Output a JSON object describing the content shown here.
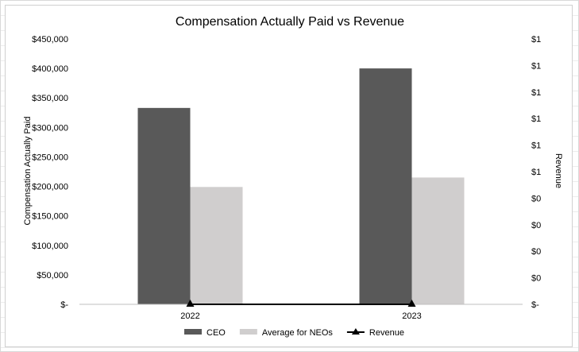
{
  "chart_data": {
    "type": "bar",
    "title": "Compensation Actually Paid vs Revenue",
    "ylabel": "Compensation Actually Paid",
    "y2label": "Revenue",
    "categories": [
      "2022",
      "2023"
    ],
    "ylim": [
      0,
      450000
    ],
    "yticks": [
      "$450,000",
      "$400,000",
      "$350,000",
      "$300,000",
      "$250,000",
      "$200,000",
      "$150,000",
      "$100,000",
      "$50,000",
      "$-"
    ],
    "y2ticks": [
      "$1",
      "$1",
      "$1",
      "$1",
      "$1",
      "$1",
      "$0",
      "$0",
      "$0",
      "$0",
      "$-"
    ],
    "series": [
      {
        "name": "CEO",
        "type": "bar",
        "color": "#595959",
        "values": [
          333000,
          400000
        ]
      },
      {
        "name": "Average for NEOs",
        "type": "bar",
        "color": "#d0cece",
        "values": [
          199000,
          215000
        ]
      },
      {
        "name": "Revenue",
        "type": "line",
        "marker": "triangle",
        "color": "#000000",
        "values": [
          0,
          0
        ]
      }
    ],
    "legend": "bottom",
    "grid": false
  }
}
